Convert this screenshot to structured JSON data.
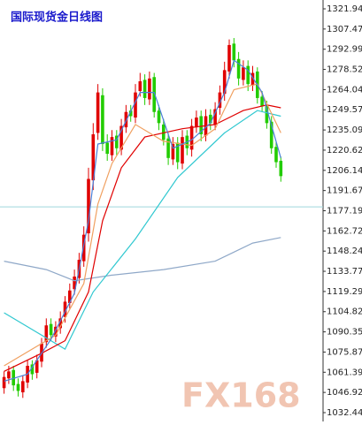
{
  "chart_data": {
    "type": "candlestick",
    "title": "国际现货金日线图",
    "watermark": "FX168",
    "ylim": [
      1032.44,
      1321.94
    ],
    "yticks": [
      1321.94,
      1307.47,
      1292.99,
      1278.52,
      1264.04,
      1249.57,
      1235.09,
      1220.62,
      1206.14,
      1191.67,
      1177.19,
      1162.72,
      1148.24,
      1133.77,
      1119.29,
      1104.82,
      1090.35,
      1075.87,
      1061.39,
      1046.92,
      1032.44
    ],
    "hline": 1180,
    "up_color": "#e00000",
    "down_color": "#22cc00",
    "open": [
      1050,
      1057,
      1063,
      1053,
      1047,
      1054,
      1067,
      1061,
      1069,
      1083,
      1096,
      1087,
      1093,
      1101,
      1111,
      1121,
      1129,
      1141,
      1161,
      1199,
      1233,
      1260,
      1226,
      1217,
      1231,
      1221,
      1237,
      1249,
      1244,
      1263,
      1271,
      1257,
      1273,
      1249,
      1239,
      1229,
      1214,
      1226,
      1211,
      1231,
      1221,
      1237,
      1245,
      1231,
      1246,
      1239,
      1251,
      1261,
      1277,
      1297,
      1286,
      1271,
      1281,
      1267,
      1277,
      1259,
      1253,
      1241,
      1223,
      1213
    ],
    "high": [
      1062,
      1066,
      1066,
      1057,
      1059,
      1070,
      1070,
      1074,
      1086,
      1100,
      1100,
      1098,
      1105,
      1116,
      1125,
      1135,
      1147,
      1166,
      1208,
      1240,
      1268,
      1265,
      1232,
      1235,
      1235,
      1243,
      1253,
      1253,
      1268,
      1276,
      1275,
      1277,
      1276,
      1253,
      1243,
      1233,
      1230,
      1230,
      1235,
      1235,
      1243,
      1249,
      1249,
      1250,
      1250,
      1255,
      1267,
      1284,
      1300,
      1301,
      1291,
      1285,
      1285,
      1281,
      1280,
      1263,
      1256,
      1245,
      1227,
      1216
    ],
    "low": [
      1046,
      1053,
      1048,
      1044,
      1043,
      1050,
      1056,
      1057,
      1065,
      1079,
      1084,
      1083,
      1089,
      1097,
      1107,
      1117,
      1125,
      1137,
      1155,
      1192,
      1228,
      1220,
      1213,
      1213,
      1217,
      1217,
      1233,
      1241,
      1240,
      1259,
      1253,
      1253,
      1244,
      1235,
      1224,
      1210,
      1210,
      1207,
      1207,
      1217,
      1216,
      1233,
      1227,
      1227,
      1235,
      1235,
      1246,
      1256,
      1272,
      1280,
      1267,
      1267,
      1263,
      1263,
      1254,
      1248,
      1236,
      1218,
      1208,
      1198
    ],
    "close": [
      1058,
      1062,
      1052,
      1048,
      1055,
      1066,
      1060,
      1070,
      1082,
      1095,
      1088,
      1094,
      1100,
      1112,
      1120,
      1130,
      1142,
      1160,
      1200,
      1232,
      1262,
      1225,
      1218,
      1230,
      1222,
      1238,
      1248,
      1245,
      1262,
      1270,
      1258,
      1272,
      1248,
      1240,
      1228,
      1215,
      1225,
      1212,
      1230,
      1222,
      1238,
      1244,
      1232,
      1245,
      1240,
      1250,
      1262,
      1278,
      1296,
      1285,
      1272,
      1280,
      1268,
      1276,
      1258,
      1252,
      1240,
      1222,
      1212,
      1202
    ],
    "lines": [
      {
        "color": "#8fa8c8",
        "x": [
          0,
          9,
          15,
          23,
          34,
          45,
          53,
          59
        ],
        "values": [
          1141,
          1135,
          1127,
          1131,
          1135,
          1141,
          1154,
          1158
        ]
      },
      {
        "color": "#30c8d0",
        "x": [
          0,
          13,
          19,
          28,
          37,
          47,
          54,
          59
        ],
        "values": [
          1104,
          1078,
          1119,
          1157,
          1201,
          1233,
          1249,
          1245
        ]
      },
      {
        "color": "#e00000",
        "x": [
          0,
          8,
          13,
          18,
          21,
          25,
          30,
          38,
          45,
          51,
          56,
          59
        ],
        "values": [
          1062,
          1075,
          1084,
          1119,
          1170,
          1208,
          1230,
          1236,
          1239,
          1249,
          1253,
          1251
        ]
      },
      {
        "color": "#f0a060",
        "x": [
          0,
          11,
          17,
          20,
          23,
          28,
          34,
          40,
          45,
          49,
          54,
          59
        ],
        "values": [
          1066,
          1088,
          1125,
          1182,
          1211,
          1239,
          1227,
          1224,
          1236,
          1264,
          1268,
          1233
        ]
      },
      {
        "color": "#4a7fd8",
        "x": [
          0,
          5,
          10,
          15,
          18,
          20,
          24,
          29,
          32,
          36,
          40,
          44,
          47,
          49,
          52,
          55,
          59
        ],
        "values": [
          1055,
          1060,
          1085,
          1118,
          1170,
          1225,
          1228,
          1262,
          1262,
          1222,
          1228,
          1240,
          1262,
          1285,
          1278,
          1262,
          1215
        ]
      }
    ]
  }
}
